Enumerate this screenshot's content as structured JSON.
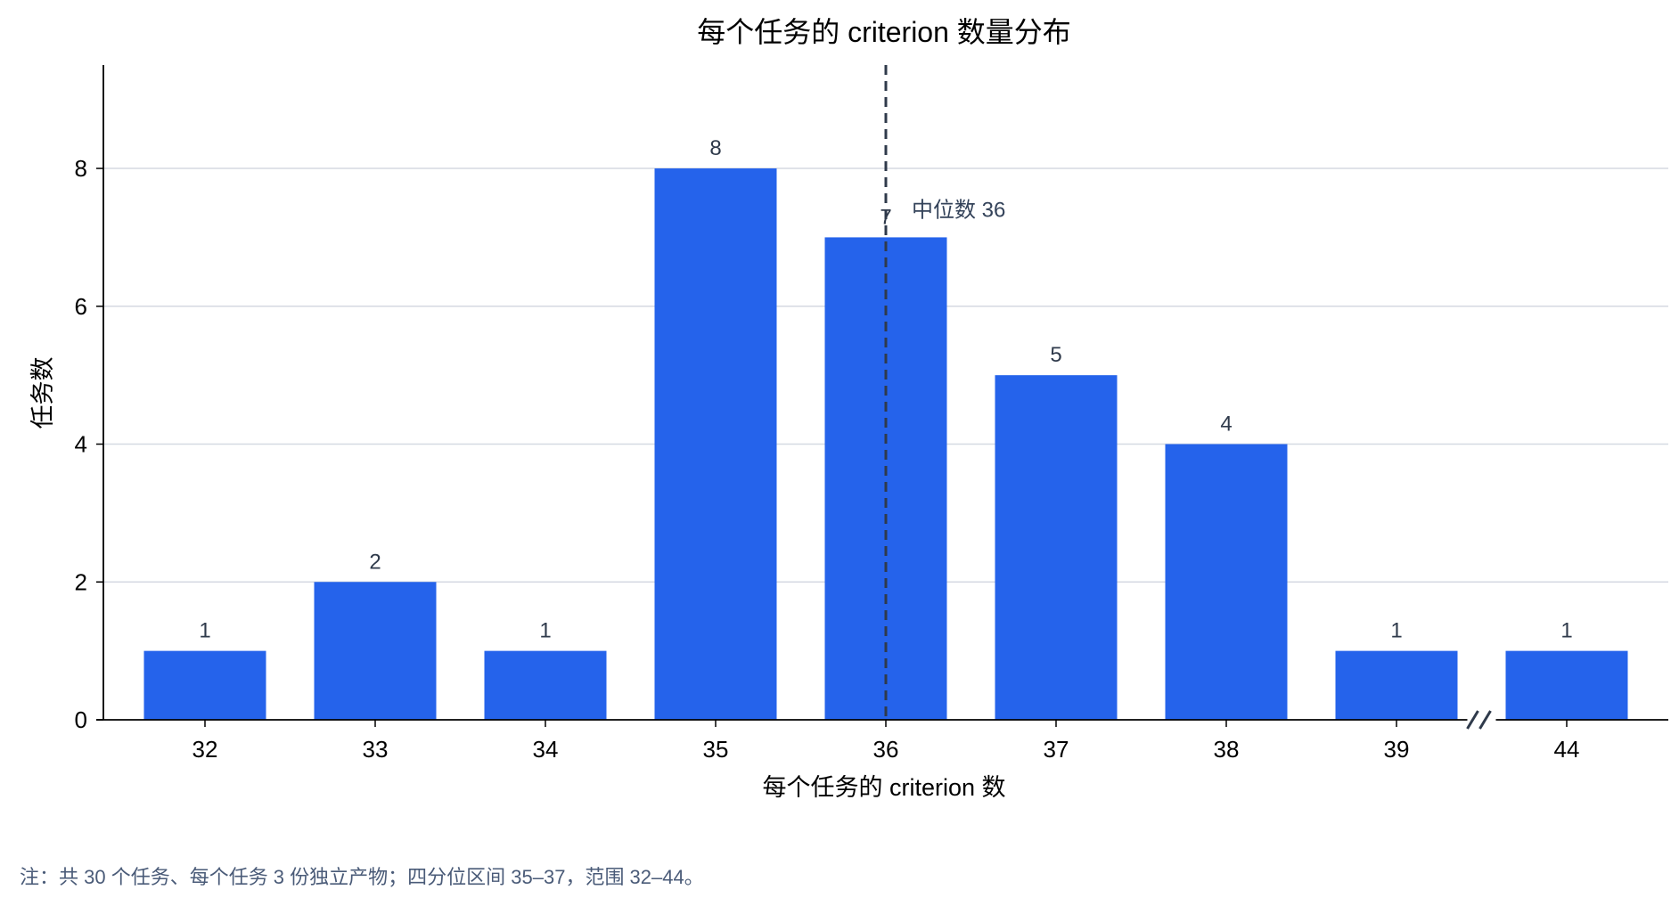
{
  "chart_data": {
    "type": "bar",
    "title": "每个任务的 criterion 数量分布",
    "xlabel": "每个任务的 criterion 数",
    "ylabel": "任务数",
    "categories": [
      "32",
      "33",
      "34",
      "35",
      "36",
      "37",
      "38",
      "39",
      "44"
    ],
    "values": [
      1,
      2,
      1,
      8,
      7,
      5,
      4,
      1,
      1
    ],
    "data_labels": [
      "1",
      "2",
      "1",
      "8",
      "7",
      "5",
      "4",
      "1",
      "1"
    ],
    "ylim": [
      0,
      9.5
    ],
    "yticks": [
      0,
      2,
      4,
      6,
      8
    ],
    "ytick_labels": [
      "0",
      "2",
      "4",
      "6",
      "8"
    ],
    "grid": "horizontal",
    "axis_break_between": [
      "39",
      "44"
    ],
    "median": {
      "value": 36,
      "label": "中位数 36"
    },
    "colors": {
      "bar": "#2563eb",
      "grid": "#d5d9e2",
      "median_line": "#2f3a4b",
      "axis": "#000000"
    }
  },
  "footnote": "注：共 30 个任务、每个任务 3 份独立产物；四分位区间 35–37，范围 32–44。"
}
